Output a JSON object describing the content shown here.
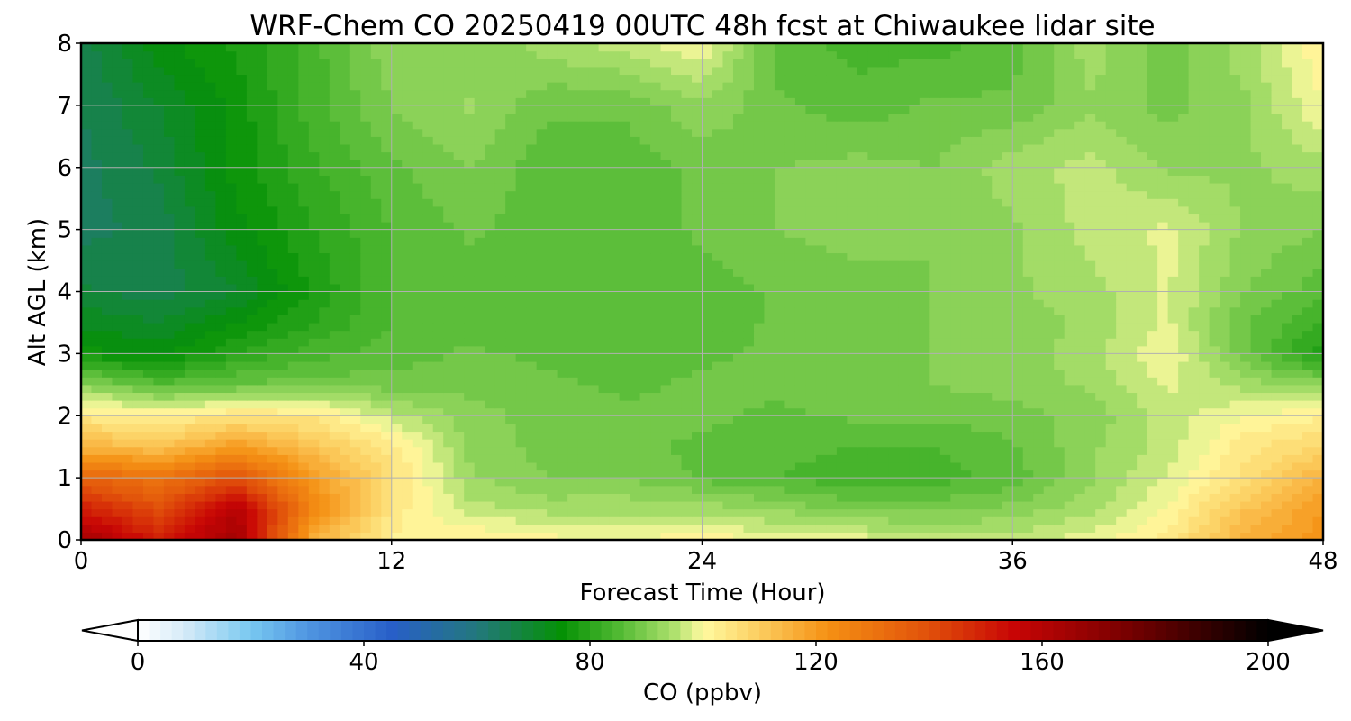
{
  "chart_data": {
    "type": "heatmap",
    "title": "WRF-Chem CO  20250419 00UTC 48h fcst at Chiwaukee lidar site",
    "xlabel": "Forecast Time (Hour)",
    "ylabel": "Alt AGL (km)",
    "xlim": [
      0,
      48
    ],
    "ylim": [
      0,
      8
    ],
    "xticks": [
      0,
      12,
      24,
      36,
      48
    ],
    "yticks": [
      0,
      1,
      2,
      3,
      4,
      5,
      6,
      7,
      8
    ],
    "grid": true,
    "x": [
      0,
      3,
      6,
      9,
      12,
      15,
      18,
      21,
      24,
      27,
      30,
      33,
      36,
      39,
      42,
      45,
      48
    ],
    "y": [
      0,
      0.5,
      1,
      1.5,
      2,
      2.5,
      3,
      3.5,
      4,
      5,
      6,
      7,
      8
    ],
    "z": [
      [
        165,
        150,
        165,
        115,
        102,
        103,
        101,
        100,
        102,
        99,
        99,
        97,
        96,
        99,
        104,
        116,
        122
      ],
      [
        150,
        140,
        160,
        125,
        104,
        96,
        94,
        94,
        94,
        92,
        89,
        89,
        91,
        94,
        100,
        112,
        120
      ],
      [
        135,
        130,
        140,
        120,
        106,
        93,
        90,
        90,
        87,
        85,
        83,
        84,
        86,
        92,
        98,
        106,
        116
      ],
      [
        115,
        112,
        120,
        112,
        104,
        92,
        89,
        88,
        87,
        86,
        85,
        85,
        87,
        92,
        96,
        104,
        108
      ],
      [
        104,
        102,
        105,
        104,
        96,
        91,
        89,
        88,
        88,
        87,
        88,
        88,
        89,
        91,
        96,
        100,
        102
      ],
      [
        92,
        86,
        88,
        89,
        89,
        89,
        88,
        87,
        88,
        88,
        89,
        90,
        91,
        93,
        98,
        94,
        92
      ],
      [
        76,
        74,
        80,
        84,
        86,
        88,
        87,
        86,
        87,
        88,
        89,
        90,
        91,
        94,
        100,
        88,
        78
      ],
      [
        72,
        70,
        75,
        80,
        85,
        86,
        85,
        85,
        86,
        88,
        89,
        90,
        91,
        93,
        98,
        88,
        82
      ],
      [
        68,
        66,
        70,
        78,
        85,
        86,
        85,
        85,
        86,
        88,
        89,
        90,
        92,
        94,
        98,
        90,
        86
      ],
      [
        64,
        66,
        74,
        80,
        85,
        88,
        86,
        86,
        88,
        90,
        91,
        90,
        92,
        96,
        98,
        92,
        90
      ],
      [
        64,
        68,
        76,
        82,
        87,
        90,
        86,
        86,
        88,
        90,
        91,
        90,
        94,
        96,
        92,
        92,
        94
      ],
      [
        65,
        70,
        76,
        84,
        90,
        93,
        88,
        88,
        92,
        88,
        86,
        88,
        88,
        92,
        89,
        92,
        100
      ],
      [
        66,
        74,
        78,
        84,
        92,
        90,
        94,
        96,
        100,
        86,
        84,
        84,
        86,
        94,
        88,
        94,
        102
      ]
    ],
    "colorbar": {
      "label": "CO  (ppbv)",
      "min": 0,
      "max": 200,
      "ticks": [
        0,
        40,
        80,
        120,
        160,
        200
      ],
      "extend": "both"
    }
  }
}
